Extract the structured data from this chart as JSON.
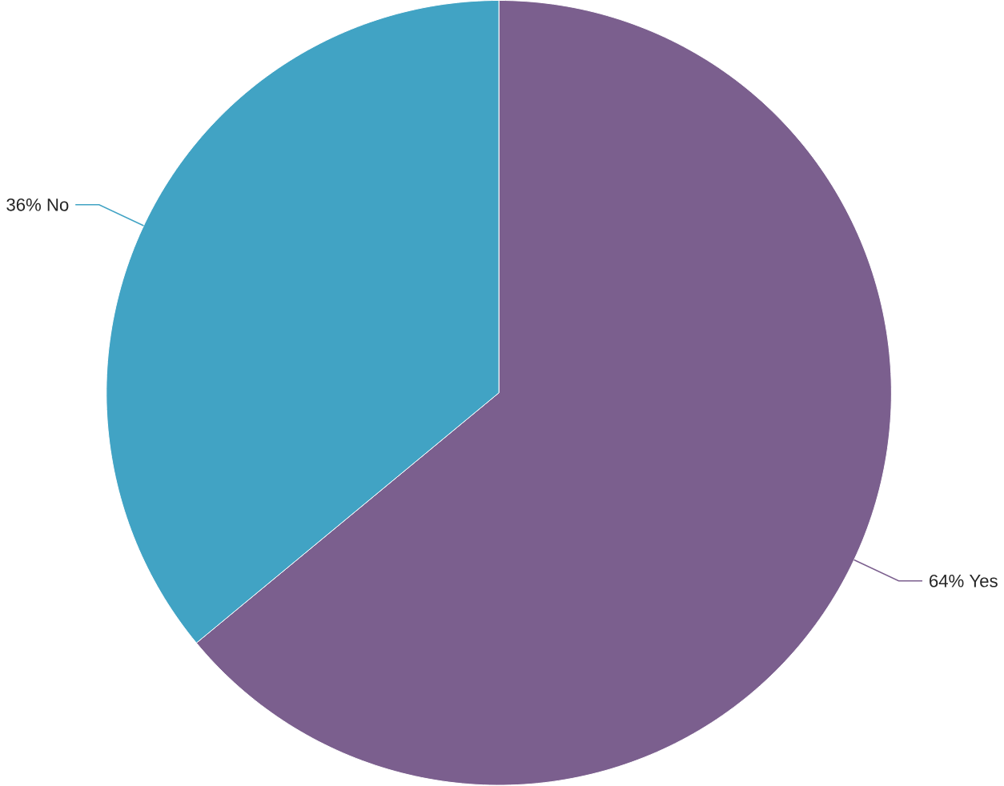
{
  "chart_data": {
    "type": "pie",
    "categories": [
      "Yes",
      "No"
    ],
    "values": [
      64,
      36
    ],
    "value_labels": [
      "64%",
      "36%"
    ],
    "colors": [
      "#7b5f8e",
      "#41a3c4"
    ]
  }
}
